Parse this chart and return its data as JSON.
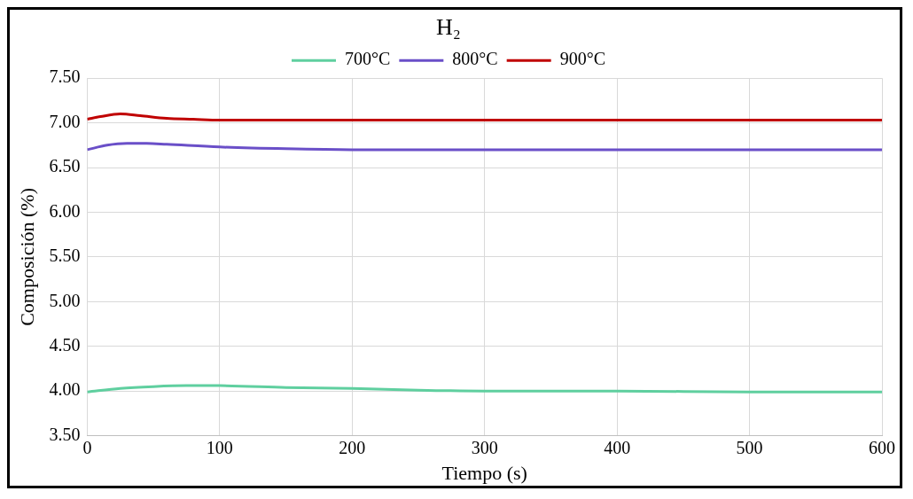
{
  "chart_data": {
    "type": "line",
    "title": "H₂",
    "xlabel": "Tiempo (s)",
    "ylabel": "Composición (%)",
    "xlim": [
      0,
      600
    ],
    "xticks": [
      0,
      100,
      200,
      300,
      400,
      500,
      600
    ],
    "ylim": [
      3.5,
      7.5
    ],
    "yticks": [
      {
        "value": 3.5,
        "label": "3.50"
      },
      {
        "value": 4,
        "label": "4.00"
      },
      {
        "value": 4.5,
        "label": "4.50"
      },
      {
        "value": 5,
        "label": "5.00"
      },
      {
        "value": 5.5,
        "label": "5.50"
      },
      {
        "value": 6,
        "label": "6.00"
      },
      {
        "value": 6.5,
        "label": "6.50"
      },
      {
        "value": 7,
        "label": "7.00"
      },
      {
        "value": 7.5,
        "label": "7.50"
      }
    ],
    "grid": true,
    "legend": "top",
    "marker": "none",
    "line_style": "solid",
    "series": [
      {
        "name": "700°C",
        "color": "#5fcf9f",
        "x": [
          0,
          25,
          50,
          75,
          100,
          150,
          200,
          250,
          300,
          400,
          500,
          600
        ],
        "values": [
          3.99,
          4.03,
          4.05,
          4.06,
          4.06,
          4.04,
          4.03,
          4.01,
          4.0,
          4.0,
          3.99,
          3.99
        ]
      },
      {
        "name": "800°C",
        "color": "#6a4fc8",
        "x": [
          0,
          15,
          30,
          45,
          60,
          100,
          150,
          200,
          300,
          400,
          500,
          600
        ],
        "values": [
          6.7,
          6.75,
          6.77,
          6.77,
          6.76,
          6.73,
          6.71,
          6.7,
          6.7,
          6.7,
          6.7,
          6.7
        ]
      },
      {
        "name": "900°C",
        "color": "#c00000",
        "x": [
          0,
          10,
          25,
          40,
          60,
          80,
          100,
          150,
          200,
          300,
          400,
          500,
          600
        ],
        "values": [
          7.04,
          7.07,
          7.1,
          7.08,
          7.05,
          7.04,
          7.03,
          7.03,
          7.03,
          7.03,
          7.03,
          7.03,
          7.03
        ]
      }
    ]
  }
}
